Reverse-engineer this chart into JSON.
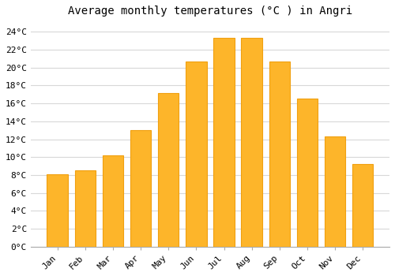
{
  "title": "Average monthly temperatures (°C ) in Angri",
  "months": [
    "Jan",
    "Feb",
    "Mar",
    "Apr",
    "May",
    "Jun",
    "Jul",
    "Aug",
    "Sep",
    "Oct",
    "Nov",
    "Dec"
  ],
  "values": [
    8.1,
    8.5,
    10.2,
    13.0,
    17.2,
    20.7,
    23.3,
    23.3,
    20.7,
    16.5,
    12.3,
    9.2
  ],
  "bar_color": "#FDB52A",
  "bar_edge_color": "#F0A010",
  "background_color": "#FFFFFF",
  "grid_color": "#D8D8D8",
  "ylim": [
    0,
    25
  ],
  "ytick_step": 2,
  "title_fontsize": 10,
  "tick_fontsize": 8
}
